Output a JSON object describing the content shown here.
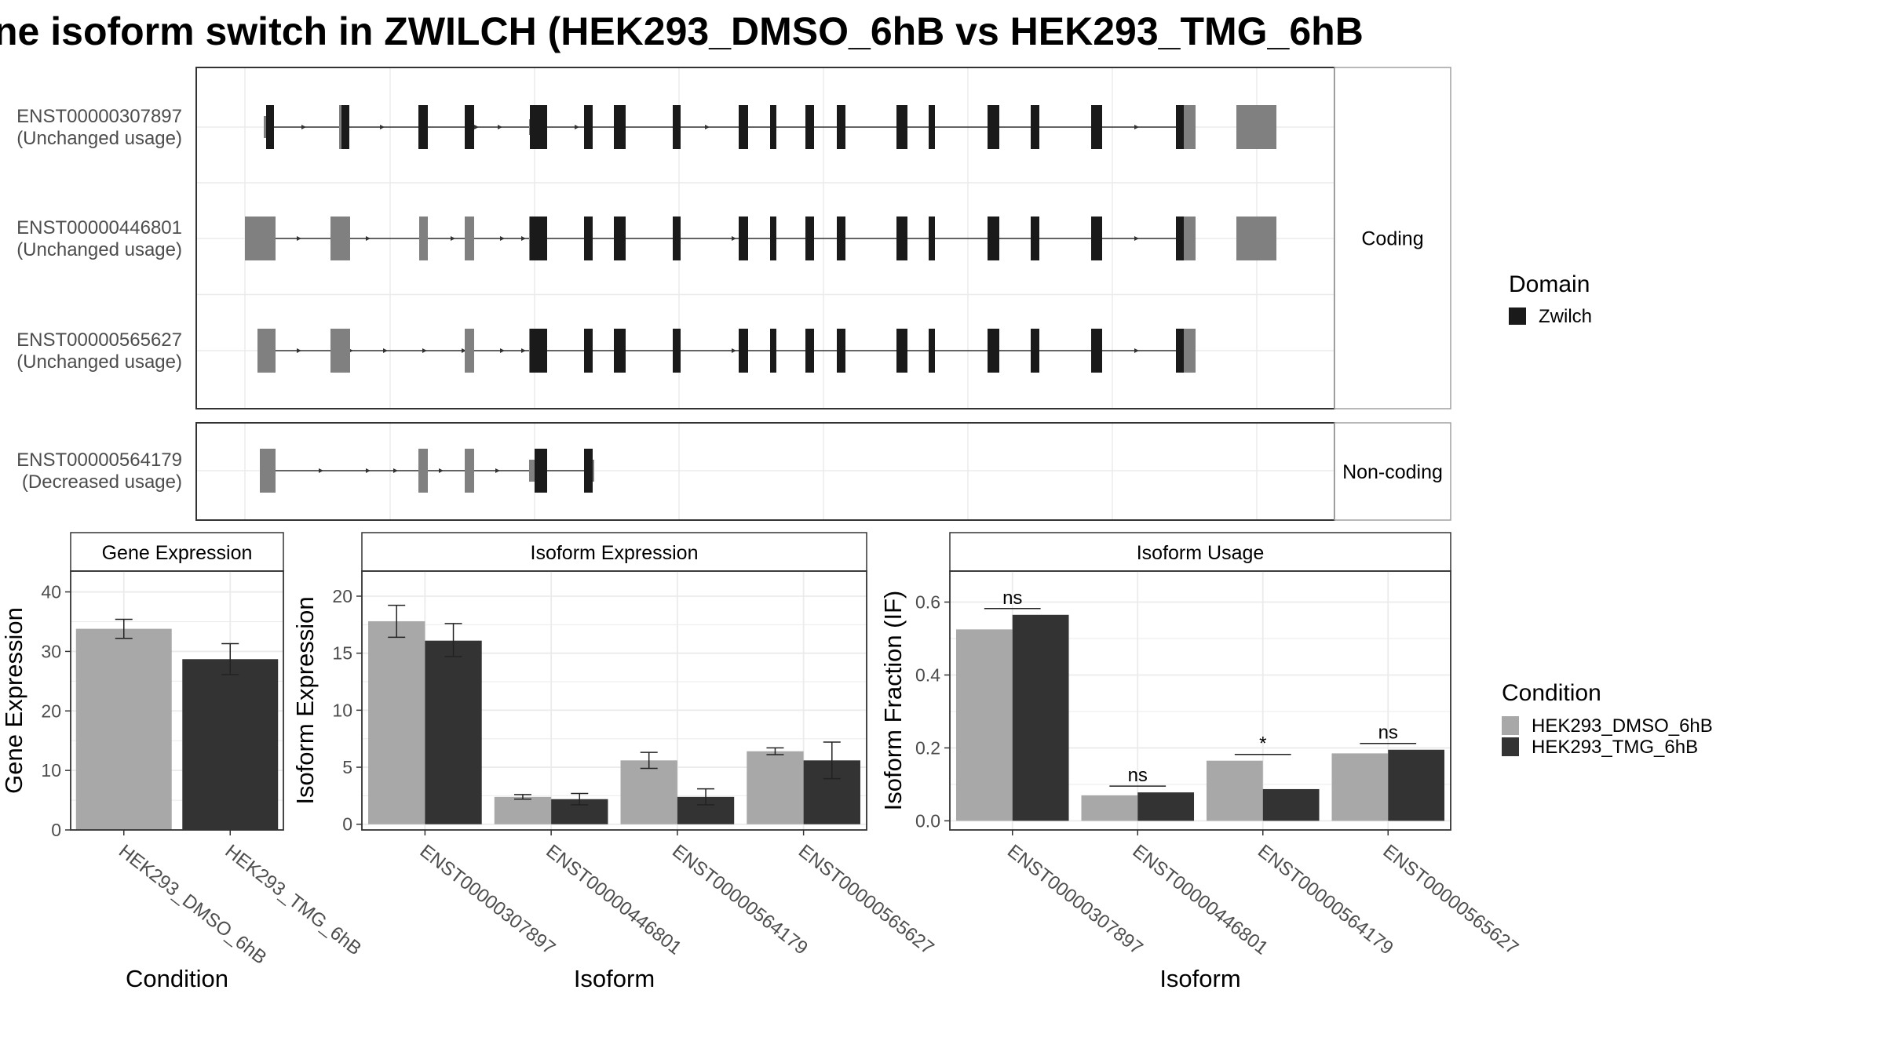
{
  "title": "ne isoform switch in ZWILCH (HEK293_DMSO_6hB vs HEK293_TMG_6hB",
  "colors": {
    "dmso": "#a8a8a8",
    "tmg": "#333333",
    "zwilch_domain": "#1a1a1a",
    "utr": "#808080",
    "grid": "#ebebeb",
    "strip": "#ffffff"
  },
  "structure": {
    "facets": [
      "Coding",
      "Non-coding"
    ],
    "transcripts": [
      {
        "id": "ENST00000307897",
        "status": "(Unchanged usage)",
        "facet": "Coding"
      },
      {
        "id": "ENST00000446801",
        "status": "(Unchanged usage)",
        "facet": "Coding"
      },
      {
        "id": "ENST00000565627",
        "status": "(Unchanged usage)",
        "facet": "Coding"
      },
      {
        "id": "ENST00000564179",
        "status": "(Decreased usage)",
        "facet": "Non-coding"
      }
    ]
  },
  "legends": {
    "domain_title": "Domain",
    "domain_items": [
      "Zwilch"
    ],
    "condition_title": "Condition",
    "condition_items": [
      "HEK293_DMSO_6hB",
      "HEK293_TMG_6hB"
    ]
  },
  "chart_data": [
    {
      "type": "bar",
      "title": "Gene Expression",
      "xlabel": "Condition",
      "ylabel": "Gene Expression",
      "categories": [
        "HEK293_DMSO_6hB",
        "HEK293_TMG_6hB"
      ],
      "values": [
        33.8,
        28.7
      ],
      "errors": [
        [
          32.2,
          35.4
        ],
        [
          26.1,
          31.3
        ]
      ],
      "ylim": [
        0,
        43.5
      ],
      "yticks": [
        0,
        10,
        20,
        30,
        40
      ],
      "grid": true
    },
    {
      "type": "bar",
      "title": "Isoform Expression",
      "xlabel": "Isoform",
      "ylabel": "Isoform Expression",
      "categories": [
        "ENST00000307897",
        "ENST00000446801",
        "ENST00000564179",
        "ENST00000565627"
      ],
      "series": [
        {
          "name": "HEK293_DMSO_6hB",
          "values": [
            17.8,
            2.4,
            5.6,
            6.4
          ],
          "errors": [
            [
              16.4,
              19.2
            ],
            [
              2.2,
              2.6
            ],
            [
              4.9,
              6.3
            ],
            [
              6.1,
              6.7
            ]
          ]
        },
        {
          "name": "HEK293_TMG_6hB",
          "values": [
            16.1,
            2.2,
            2.4,
            5.6
          ],
          "errors": [
            [
              14.7,
              17.6
            ],
            [
              1.7,
              2.7
            ],
            [
              1.7,
              3.1
            ],
            [
              4.0,
              7.2
            ]
          ]
        }
      ],
      "ylim": [
        -0.5,
        22.2
      ],
      "yticks": [
        0,
        5,
        10,
        15,
        20
      ],
      "grid": true
    },
    {
      "type": "bar",
      "title": "Isoform Usage",
      "xlabel": "Isoform",
      "ylabel": "Isoform Fraction (IF)",
      "categories": [
        "ENST00000307897",
        "ENST00000446801",
        "ENST00000564179",
        "ENST00000565627"
      ],
      "series": [
        {
          "name": "HEK293_DMSO_6hB",
          "values": [
            0.525,
            0.07,
            0.165,
            0.185
          ]
        },
        {
          "name": "HEK293_TMG_6hB",
          "values": [
            0.565,
            0.078,
            0.087,
            0.195
          ]
        }
      ],
      "significance": [
        "ns",
        "ns",
        "*",
        "ns"
      ],
      "ylim": [
        -0.025,
        0.685
      ],
      "yticks": [
        0.0,
        0.2,
        0.4,
        0.6
      ],
      "ytick_labels": [
        "0.0",
        "0.2",
        "0.4",
        "0.6"
      ],
      "grid": true
    }
  ]
}
